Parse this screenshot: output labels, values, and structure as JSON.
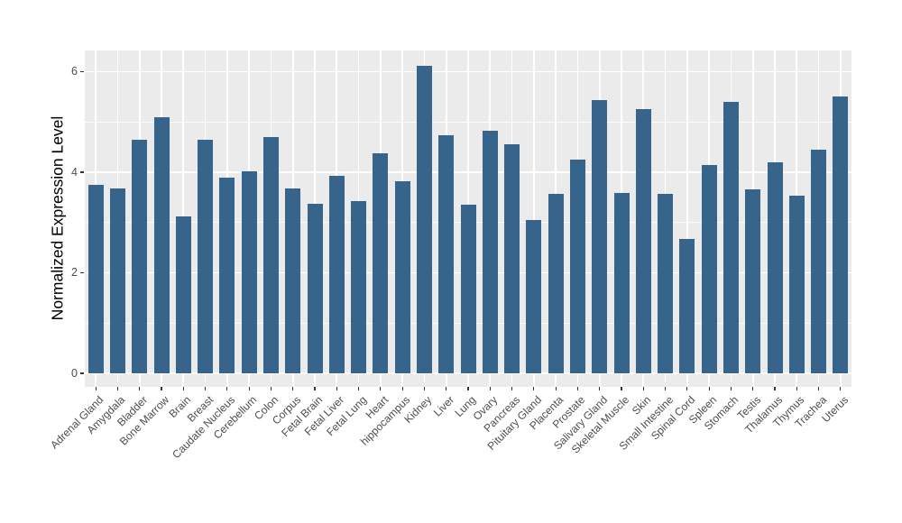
{
  "chart_data": {
    "type": "bar",
    "title": "",
    "xlabel": "",
    "ylabel": "Normalized Expression Level",
    "categories": [
      "Adrenal Gland",
      "Amygdala",
      "Bladder",
      "Bone Marrow",
      "Brain",
      "Breast",
      "Caudate Nucleus",
      "Cerebellum",
      "Colon",
      "Corpus",
      "Fetal Brain",
      "Fetal Liver",
      "Fetal Lung",
      "Heart",
      "hippocampus",
      "Kidney",
      "Liver",
      "Lung",
      "Ovary",
      "Pancreas",
      "Pituitary Gland",
      "Placenta",
      "Prostate",
      "Salivary Gland",
      "Skeletal Muscle",
      "Skin",
      "Small Intestine",
      "Spinal Cord",
      "Spleen",
      "Stomach",
      "Testis",
      "Thalamus",
      "Thymus",
      "Trachea",
      "Uterus"
    ],
    "values": [
      3.75,
      3.68,
      4.64,
      5.09,
      3.12,
      4.65,
      3.9,
      4.01,
      4.7,
      3.68,
      3.38,
      3.92,
      3.42,
      4.38,
      3.82,
      6.11,
      4.74,
      3.36,
      4.83,
      4.55,
      3.04,
      3.56,
      4.25,
      5.44,
      3.58,
      5.25,
      3.56,
      2.68,
      4.15,
      5.4,
      3.65,
      4.19,
      3.54,
      4.44,
      5.51
    ],
    "yticks": [
      0,
      2,
      4,
      6
    ],
    "yticks_minor": [
      1,
      3,
      5
    ],
    "ylim": [
      -0.27,
      6.42
    ],
    "grid": true,
    "legend": "none",
    "bar_color": "#37648B",
    "panel_background": "#EBEBEB",
    "grid_color": "#FFFFFF",
    "tick_mark_color": "#333333",
    "tick_label_color": "#4D4D4D",
    "axis_title_color": "#000000",
    "x_label_angle_deg": 45
  }
}
